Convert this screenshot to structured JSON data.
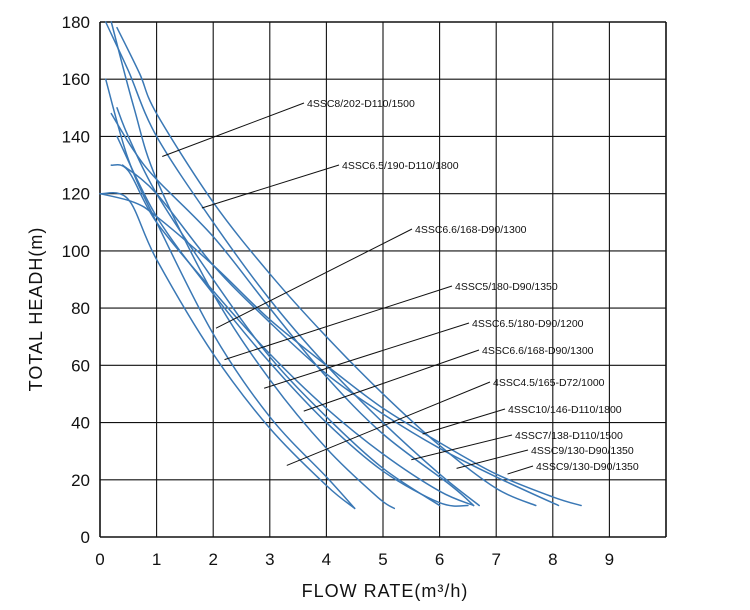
{
  "chart_data": {
    "type": "line",
    "xlabel": "FLOW RATE(m³/h)",
    "ylabel": "TOTAL HEADH(m)",
    "xlim": [
      0,
      10
    ],
    "ylim": [
      0,
      180
    ],
    "x_ticks": [
      "0",
      "1",
      "2",
      "3",
      "4",
      "5",
      "6",
      "7",
      "8",
      "9"
    ],
    "y_ticks": [
      "0",
      "20",
      "40",
      "60",
      "80",
      "100",
      "120",
      "140",
      "160",
      "180"
    ],
    "grid": true,
    "colors": {
      "curve": "#3a78b5",
      "grid": "#111111",
      "leader": "#111111"
    },
    "series": [
      {
        "name": "4SSC8/202-D110/1500",
        "x": [
          0.1,
          0.5,
          1,
          2,
          3,
          4,
          5,
          6,
          6.7
        ],
        "y": [
          180,
          163,
          140,
          110,
          83,
          60,
          40,
          22,
          11
        ],
        "label_anchor": [
          1.1,
          133
        ]
      },
      {
        "name": "4SSC6.5/190-D110/1800",
        "x": [
          0.3,
          0.7,
          1,
          2,
          3,
          4,
          5,
          6,
          7,
          7.7
        ],
        "y": [
          178,
          162,
          148,
          117,
          92,
          70,
          50,
          32,
          17,
          11
        ],
        "label_anchor": [
          1.8,
          115
        ]
      },
      {
        "name": "4SSC6.6/168-D90/1300",
        "x": [
          0.1,
          0.5,
          1,
          2,
          3,
          4,
          4.5
        ],
        "y": [
          160,
          132,
          110,
          71,
          42,
          21,
          10
        ],
        "label_anchor": [
          2.05,
          73
        ]
      },
      {
        "name": "4SSC5/180-D90/1350",
        "x": [
          0.2,
          0.6,
          1,
          2,
          3,
          4,
          4.9,
          5.2
        ],
        "y": [
          180,
          150,
          125,
          85,
          55,
          31,
          14,
          10
        ],
        "label_anchor": [
          2.2,
          62
        ]
      },
      {
        "name": "4SSC6.5/180-D90/1200",
        "x": [
          0.3,
          0.5,
          1,
          2,
          3,
          4,
          5,
          6
        ],
        "y": [
          150,
          140,
          120,
          90,
          63,
          42,
          24,
          11
        ],
        "label_anchor": [
          2.9,
          52
        ]
      },
      {
        "name": "4SSC6.6/168-D90/1300",
        "x": [
          0.2,
          0.6,
          1,
          2,
          3,
          4,
          5,
          6.2,
          6.6
        ],
        "y": [
          148,
          135,
          125,
          105,
          80,
          56,
          36,
          18,
          11
        ],
        "label_anchor": [
          3.6,
          44
        ]
      },
      {
        "name": "4SSC4.5/165-D72/1000",
        "x": [
          0,
          0.5,
          1,
          2,
          3,
          4,
          4.5
        ],
        "y": [
          120,
          118,
          97,
          64,
          38,
          18,
          10
        ],
        "label_anchor": [
          3.3,
          25
        ]
      },
      {
        "name": "4SSC10/146-D110/1800",
        "x": [
          0,
          0.6,
          1,
          2,
          3,
          4,
          5,
          6,
          7,
          8,
          8.5
        ],
        "y": [
          120,
          117,
          112,
          95,
          76,
          60,
          45,
          33,
          22,
          14,
          11
        ],
        "label_anchor": [
          5.7,
          36
        ]
      },
      {
        "name": "4SSC7/138-D110/1500",
        "x": [
          0.3,
          1,
          2,
          3,
          4,
          5,
          6,
          6.5
        ],
        "y": [
          140,
          112,
          85,
          61,
          40,
          23,
          12,
          11
        ],
        "label_anchor": [
          5.5,
          27
        ]
      },
      {
        "name": "4SSC9/130-D90/1350",
        "x": [
          0.2,
          0.5,
          1,
          2,
          3,
          4,
          5,
          6,
          6.6
        ],
        "y": [
          130,
          128,
          110,
          86,
          64,
          45,
          29,
          16,
          11
        ],
        "label_anchor": [
          6.3,
          24
        ]
      },
      {
        "name": "4SSC9/130-D90/1350",
        "x": [
          0.4,
          1,
          2,
          3,
          4,
          5,
          6,
          7,
          8.1
        ],
        "y": [
          130,
          120,
          95,
          75,
          57,
          43,
          31,
          21,
          11
        ],
        "label_anchor": [
          7.2,
          22
        ]
      }
    ]
  }
}
